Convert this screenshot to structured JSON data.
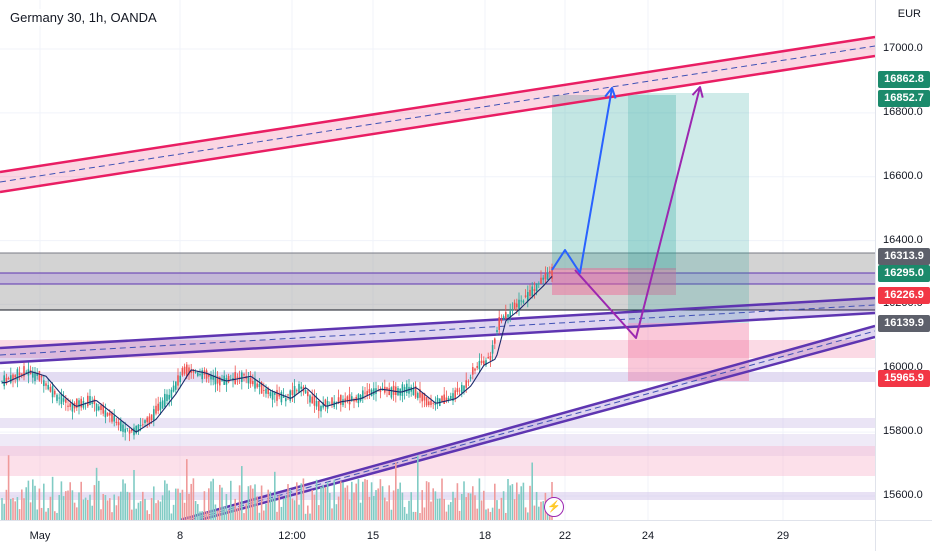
{
  "chart_title": "Germany 30, 1h, OANDA",
  "currency": "EUR",
  "colors": {
    "channel_red": "#e91e63",
    "channel_purple": "#7e57c2",
    "candle_up": "#26a69a",
    "candle_down": "#ef5350",
    "volume_up": "#80cbc4",
    "volume_down": "#ef9a9a",
    "ma_line": "#1c2a6b",
    "target_zone": "#26a69a",
    "stop_zone": "#f06292",
    "arrow_blue": "#2962ff",
    "arrow_purple": "#9c27b0",
    "badge_green": "#1b8a6b",
    "badge_gray": "#5d606b",
    "badge_red": "#f23645"
  },
  "axis": {
    "y_ticks": [
      "17000.0",
      "16800.0",
      "16600.0",
      "16400.0",
      "16200.0",
      "16000.0",
      "15800.0",
      "15600.0"
    ],
    "x_ticks": [
      "May",
      "8",
      "12:00",
      "15",
      "18",
      "22",
      "24",
      "29"
    ]
  },
  "price_badges": [
    {
      "label": "16862.8",
      "color": "green",
      "price": 16862.8
    },
    {
      "label": "16852.7",
      "color": "green",
      "price": 16852.7
    },
    {
      "label": "16313.9",
      "color": "gray",
      "price": 16313.9
    },
    {
      "label": "16295.0",
      "color": "green",
      "price": 16295.0
    },
    {
      "label": "16226.9",
      "color": "red",
      "price": 16226.9
    },
    {
      "label": "16139.9",
      "color": "gray",
      "price": 16139.9
    },
    {
      "label": "15965.9",
      "color": "red",
      "price": 15965.9
    }
  ],
  "chart_data": {
    "type": "candlestick",
    "title": "Germany 30, 1h, OANDA",
    "ylabel": "EUR",
    "ylim": [
      15510,
      17080
    ],
    "x_tick_labels": [
      "May",
      "8",
      "12:00",
      "15",
      "18",
      "22",
      "24",
      "29"
    ],
    "key_levels": [
      16313.9,
      16295.0,
      16226.9,
      16139.9,
      15965.9
    ],
    "projected_targets": [
      16862.8,
      16852.7
    ],
    "price_path_approx": {
      "note_points": [
        [
          "May",
          15940
        ],
        [
          "8",
          15985
        ],
        [
          "12:00",
          15955
        ],
        [
          "15",
          15890
        ],
        [
          "18",
          16040
        ],
        [
          "22",
          16300
        ]
      ]
    },
    "grid": true,
    "legend": "none"
  }
}
